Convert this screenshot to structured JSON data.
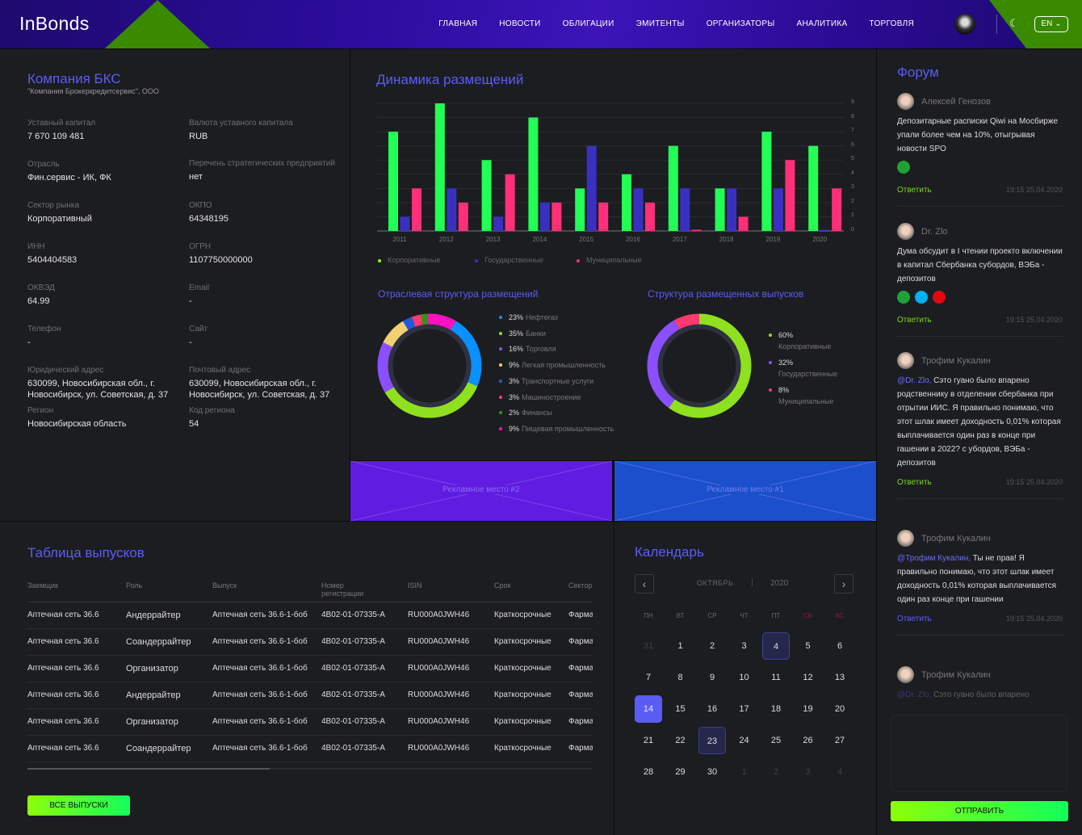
{
  "header": {
    "logo": "InBonds",
    "nav": [
      "ГЛАВНАЯ",
      "НОВОСТИ",
      "ОБЛИГАЦИИ",
      "ЭМИТЕНТЫ",
      "ОРГАНИЗАТОРЫ",
      "АНАЛИТИКА",
      "ТОРГОВЛЯ"
    ],
    "lang": "EN ⌄",
    "theme_icon": "moon-icon"
  },
  "company": {
    "title": "Компания БКС",
    "subtitle": "\"Компания Брокеркредитсервис\", ООО",
    "fields": [
      {
        "label": "Уставный капитал",
        "value": "7 670 109 481"
      },
      {
        "label": "Валюта уставного капитала",
        "value": "RUB"
      },
      {
        "label": "Отрасль",
        "value": "Фин.сервис - ИК, ФК"
      },
      {
        "label": "Перечень стратегических предприятий",
        "value": "нет"
      },
      {
        "label": "Сектор рынка",
        "value": "Корпоративный"
      },
      {
        "label": "ОКПО",
        "value": "64348195"
      },
      {
        "label": "ИНН",
        "value": "5404404583"
      },
      {
        "label": "ОГРН",
        "value": "1107750000000"
      },
      {
        "label": "ОКВЭД",
        "value": "64.99"
      },
      {
        "label": "Email",
        "value": "-"
      },
      {
        "label": "Телефон",
        "value": "-"
      },
      {
        "label": "Сайт",
        "value": "-"
      },
      {
        "label": "Юридический адрес",
        "value": "630099, Новосибирская обл., г. Новосибирск, ул. Советская, д. 37"
      },
      {
        "label": "Почтовый адрес",
        "value": "630099, Новосибирская обл., г. Новосибирск, ул. Советская, д. 37"
      },
      {
        "label": "Регион",
        "value": "Новосибирская область"
      },
      {
        "label": "Код региона",
        "value": "54"
      }
    ]
  },
  "chart_data": [
    {
      "type": "bar",
      "title": "Динамика размещений",
      "categories": [
        "2011",
        "2012",
        "2013",
        "2014",
        "2015",
        "2016",
        "2017",
        "2018",
        "2019",
        "2020"
      ],
      "ylim": [
        0,
        9
      ],
      "yticks": [
        "0",
        "1",
        "2",
        "3",
        "4",
        "5",
        "6",
        "7",
        "8",
        "9"
      ],
      "grid": true,
      "legend": "bottom-left",
      "series": [
        {
          "name": "Корпоративные",
          "color": "#22ff55",
          "values": [
            7,
            9,
            5,
            8,
            3,
            4,
            6,
            3,
            7,
            6
          ]
        },
        {
          "name": "Государственные",
          "color": "#3a30c0",
          "values": [
            1,
            3,
            1,
            2,
            6,
            3,
            3,
            3,
            3,
            0
          ]
        },
        {
          "name": "Муниципальные",
          "color": "#ff2f7a",
          "values": [
            3,
            2,
            4,
            2,
            2,
            2,
            0,
            1,
            5,
            3
          ]
        }
      ]
    },
    {
      "type": "pie",
      "title": "Отраслевая структура размещений",
      "slices": [
        {
          "pct": "23%",
          "value": 23,
          "label": "Нефтегаз",
          "color": "#0a90ff"
        },
        {
          "pct": "35%",
          "value": 35,
          "label": "Банки",
          "color": "#8fe01e"
        },
        {
          "pct": "16%",
          "value": 16,
          "label": "Торговля",
          "color": "#8a50ff"
        },
        {
          "pct": "9%",
          "value": 9,
          "label": "Легкая промышленность",
          "color": "#f0d070"
        },
        {
          "pct": "3%",
          "value": 3,
          "label": "Транспортные услуги",
          "color": "#1e5ae0"
        },
        {
          "pct": "3%",
          "value": 3,
          "label": "Машиностроение",
          "color": "#ff3a70"
        },
        {
          "pct": "2%",
          "value": 2,
          "label": "Финансы",
          "color": "#2a9a10"
        },
        {
          "pct": "9%",
          "value": 9,
          "label": "Пищевая промышленность",
          "color": "#ff10c0"
        }
      ]
    },
    {
      "type": "pie",
      "title": "Структура размещенных выпусков",
      "slices": [
        {
          "pct": "60%",
          "value": 60,
          "label": "Корпоративные",
          "color": "#8fe01e"
        },
        {
          "pct": "32%",
          "value": 32,
          "label": "Государственные",
          "color": "#8a50ff"
        },
        {
          "pct": "8%",
          "value": 8,
          "label": "Муниципальные",
          "color": "#ff3a70"
        }
      ]
    }
  ],
  "ads": [
    {
      "label": "Рекламное место #2",
      "color": "#601ce0"
    },
    {
      "label": "Рекламное место #1",
      "color": "#1b4fcc"
    }
  ],
  "table": {
    "title": "Таблица выпусков",
    "columns": [
      "Заемщик",
      "Роль",
      "Выпуск",
      "Номер регистрации",
      "ISIN",
      "Срок",
      "Сектор"
    ],
    "rows": [
      [
        "Аптечная сеть 36.6",
        "Андеррайтер",
        "Аптечная сеть 36.6-1-боб",
        "4B02-01-07335-A",
        "RU000A0JWH46",
        "Краткосрочные",
        "Фарма"
      ],
      [
        "Аптечная сеть 36.6",
        "Соандеррайтер",
        "Аптечная сеть 36.6-1-боб",
        "4B02-01-07335-A",
        "RU000A0JWH46",
        "Краткосрочные",
        "Фарма"
      ],
      [
        "Аптечная сеть 36.6",
        "Организатор",
        "Аптечная сеть 36.6-1-боб",
        "4B02-01-07335-A",
        "RU000A0JWH46",
        "Краткосрочные",
        "Фарма"
      ],
      [
        "Аптечная сеть 36.6",
        "Андеррайтер",
        "Аптечная сеть 36.6-1-боб",
        "4B02-01-07335-A",
        "RU000A0JWH46",
        "Краткосрочные",
        "Фарма"
      ],
      [
        "Аптечная сеть 36.6",
        "Организатор",
        "Аптечная сеть 36.6-1-боб",
        "4B02-01-07335-A",
        "RU000A0JWH46",
        "Краткосрочные",
        "Фарма"
      ],
      [
        "Аптечная сеть 36.6",
        "Соандеррайтер",
        "Аптечная сеть 36.6-1-боб",
        "4B02-01-07335-A",
        "RU000A0JWH46",
        "Краткосрочные",
        "Фарма"
      ]
    ],
    "all_button": "ВСЕ ВЫПУСКИ"
  },
  "calendar": {
    "title": "Календарь",
    "month": "ОКТЯБРЬ",
    "year": "2020",
    "weekdays": [
      "ПН",
      "ВТ",
      "СР",
      "ЧТ",
      "ПТ",
      "СБ",
      "ВС"
    ],
    "days": [
      "31",
      "1",
      "2",
      "3",
      "4",
      "5",
      "6",
      "7",
      "8",
      "9",
      "10",
      "11",
      "12",
      "13",
      "14",
      "15",
      "16",
      "17",
      "18",
      "19",
      "20",
      "21",
      "22",
      "23",
      "24",
      "25",
      "26",
      "27",
      "28",
      "29",
      "30",
      "1",
      "2",
      "3",
      "4"
    ],
    "selected": "14",
    "marked": [
      "4",
      "23"
    ]
  },
  "forum": {
    "title": "Форум",
    "send": "ОТПРАВИТЬ",
    "posts": [
      {
        "author": "Алексей Генозов",
        "mention": "",
        "text": "Депозитарные расписки Qiwi на Мосбирже упали более чем на 10%, отыгрывая новости SPO",
        "banks": [
          "sber"
        ],
        "reply": "Ответить",
        "time": "19:15  25.04.2020"
      },
      {
        "author": "Dr. Zlo",
        "mention": "",
        "text": "Дума обсудит в I чтении проекто включении в капитал Сбербанка субордов, ВЭБа - депозитов",
        "banks": [
          "sber",
          "otkritie",
          "alfa"
        ],
        "reply": "Ответить",
        "time": "19:15  25.04.2020"
      },
      {
        "author": "Трофим Кукалин",
        "mention": "@Dr. Zlo,",
        "text": " Сэто гуано было впарено родственнику в отделении сбербанка при отрытии ИИС. Я правильно понимаю, что этот шлак имеет доходность 0,01% которая выплачивается один раз в конце при гашении в 2022? с убордов, ВЭБа - депозитов",
        "banks": [],
        "reply": "Ответить",
        "time": "19:15  25.04.2020"
      },
      {
        "author": "Трофим Кукалин",
        "mention": "@Трофим Кукалин,",
        "text": " Ты не прав! Я правильно понимаю, что этот шлак имеет доходность 0,01% которая выплачивается один раз конце при гашении",
        "banks": [],
        "reply": "Ответить",
        "time": "19:15  25.04.2020"
      },
      {
        "author": "Трофим Кукалин",
        "mention": "@Dr. Zlo,",
        "text": " Сэто гуано было впарено",
        "banks": [],
        "reply": "",
        "time": ""
      }
    ]
  }
}
